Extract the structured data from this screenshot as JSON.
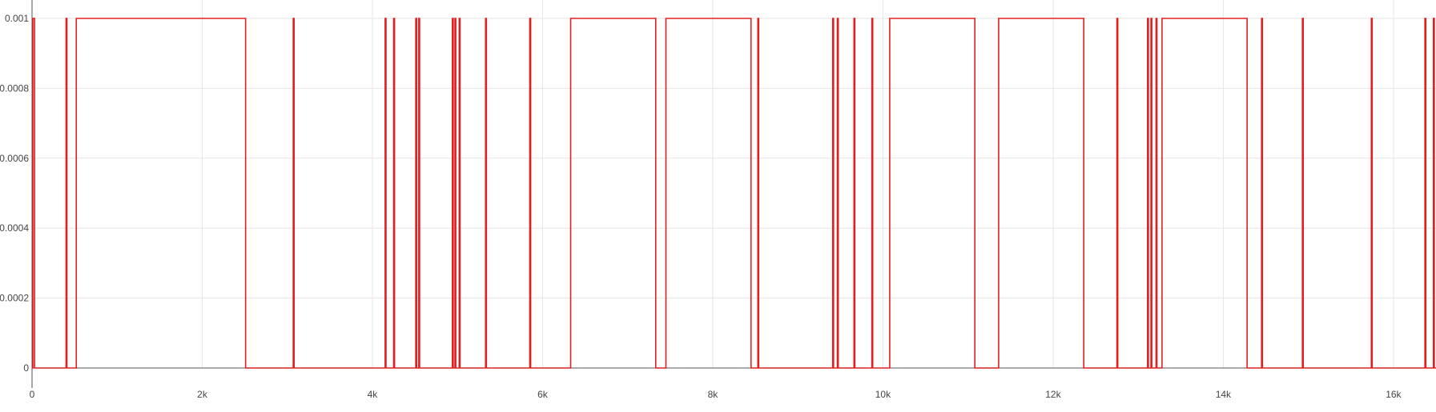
{
  "chart_data": {
    "type": "line",
    "title": "",
    "xlabel": "",
    "ylabel": "",
    "xlim": [
      0,
      16500
    ],
    "ylim": [
      0,
      0.001
    ],
    "grid": true,
    "legend": "none",
    "x_ticks": [
      {
        "value": 0,
        "label": "0"
      },
      {
        "value": 2000,
        "label": "2k"
      },
      {
        "value": 4000,
        "label": "4k"
      },
      {
        "value": 6000,
        "label": "6k"
      },
      {
        "value": 8000,
        "label": "8k"
      },
      {
        "value": 10000,
        "label": "10k"
      },
      {
        "value": 12000,
        "label": "12k"
      },
      {
        "value": 14000,
        "label": "14k"
      },
      {
        "value": 16000,
        "label": "16k"
      }
    ],
    "y_ticks": [
      {
        "value": 0,
        "label": "0"
      },
      {
        "value": 0.0002,
        "label": "0.0002"
      },
      {
        "value": 0.0004,
        "label": "0.0004"
      },
      {
        "value": 0.0006,
        "label": "0.0006"
      },
      {
        "value": 0.0008,
        "label": "0.0008"
      },
      {
        "value": 0.001,
        "label": "0.001"
      }
    ],
    "series": [
      {
        "color": "#e02020",
        "high": 0.001,
        "low": 0,
        "high_intervals": [
          [
            10,
            30
          ],
          [
            400,
            410
          ],
          [
            520,
            2510
          ],
          [
            3070,
            3080
          ],
          [
            4150,
            4160
          ],
          [
            4250,
            4260
          ],
          [
            4510,
            4520
          ],
          [
            4545,
            4555
          ],
          [
            4940,
            4950
          ],
          [
            4970,
            4980
          ],
          [
            5020,
            5030
          ],
          [
            5330,
            5340
          ],
          [
            5850,
            5860
          ],
          [
            6330,
            7330
          ],
          [
            7450,
            8450
          ],
          [
            8530,
            8540
          ],
          [
            9410,
            9420
          ],
          [
            9465,
            9475
          ],
          [
            9660,
            9670
          ],
          [
            9870,
            9880
          ],
          [
            10080,
            11080
          ],
          [
            11360,
            12360
          ],
          [
            12750,
            12760
          ],
          [
            13110,
            13120
          ],
          [
            13150,
            13160
          ],
          [
            13210,
            13220
          ],
          [
            13280,
            14280
          ],
          [
            14450,
            14460
          ],
          [
            14930,
            14940
          ],
          [
            15740,
            15750
          ],
          [
            16370,
            16380
          ],
          [
            16470,
            16480
          ]
        ]
      }
    ]
  },
  "colors": {
    "series": "#e02020",
    "grid": "#e6e6e6",
    "axis": "#555555",
    "text": "#444444"
  }
}
